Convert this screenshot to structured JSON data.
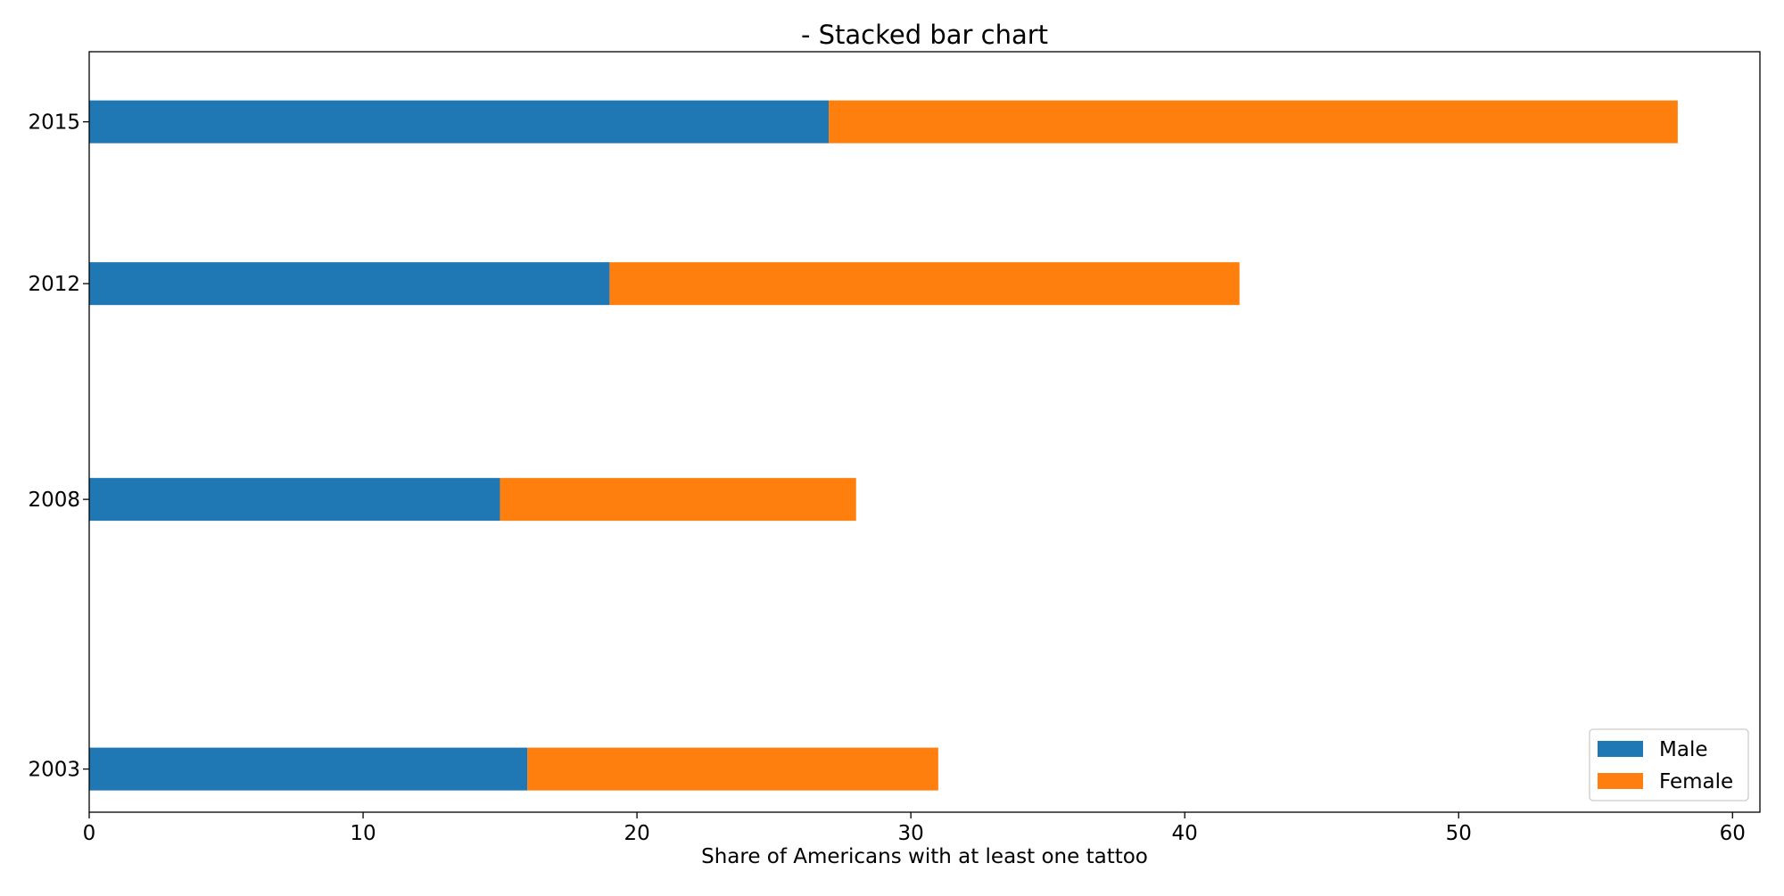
{
  "chart_data": {
    "type": "bar",
    "orientation": "horizontal",
    "stacked": true,
    "title": "- Stacked bar chart",
    "xlabel": "Share of Americans with at least one tattoo",
    "ylabel": "",
    "categories": [
      "2003",
      "2008",
      "2012",
      "2015"
    ],
    "series": [
      {
        "name": "Male",
        "color": "#1f77b4",
        "values": [
          16,
          15,
          19,
          27
        ]
      },
      {
        "name": "Female",
        "color": "#ff7f0e",
        "values": [
          15,
          13,
          23,
          31
        ]
      }
    ],
    "xlim": [
      0,
      61
    ],
    "xticks": [
      0,
      10,
      20,
      30,
      40,
      50,
      60
    ],
    "ylim": [
      2002.2,
      2016.3
    ],
    "grid": false,
    "legend_position": "lower-right"
  }
}
